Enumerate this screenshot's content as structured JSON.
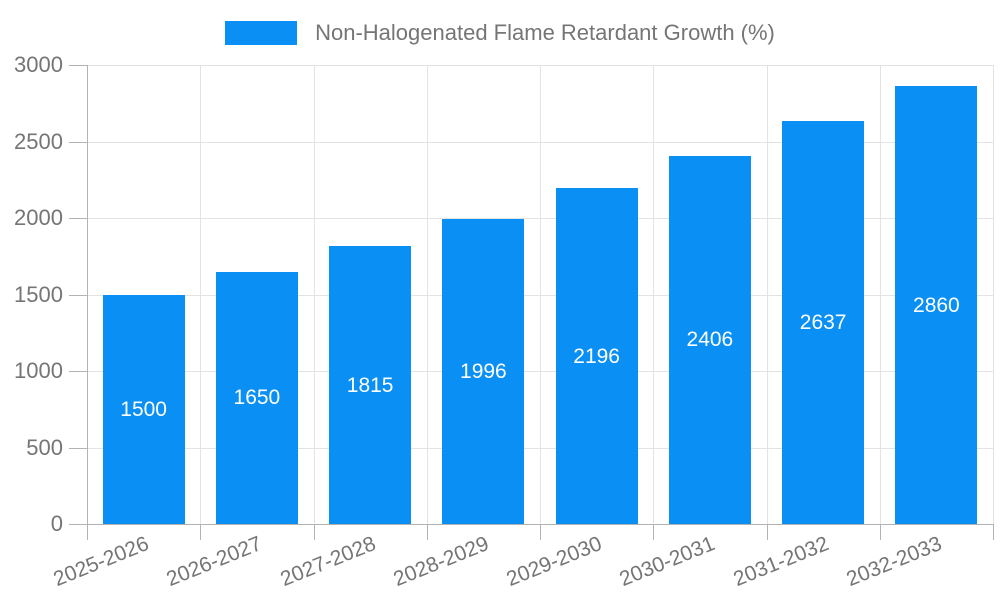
{
  "legend": {
    "label": "Non-Halogenated Flame Retardant Growth (%)"
  },
  "chart_data": {
    "type": "bar",
    "title": "",
    "categories": [
      "2025-2026",
      "2026-2027",
      "2027-2028",
      "2028-2029",
      "2029-2030",
      "2030-2031",
      "2031-2032",
      "2032-2033"
    ],
    "series": [
      {
        "name": "Non-Halogenated Flame Retardant Growth (%)",
        "values": [
          1500,
          1650,
          1815,
          1996,
          2196,
          2406,
          2637,
          2860
        ]
      }
    ],
    "value_labels": [
      "1500",
      "1650",
      "1815",
      "1996",
      "2196",
      "2406",
      "2637",
      "2860"
    ],
    "xlabel": "",
    "ylabel": "",
    "ylim": [
      0,
      3000
    ],
    "yticks": [
      0,
      500,
      1000,
      1500,
      2000,
      2500,
      3000
    ],
    "grid": true,
    "legend_position": "top",
    "colors": {
      "bar": "#0a8ff5",
      "grid": "#e3e3e3",
      "axis": "#b3b3b3",
      "tick_text": "#757575",
      "value_label": "#ffffff",
      "background": "#ffffff"
    }
  }
}
